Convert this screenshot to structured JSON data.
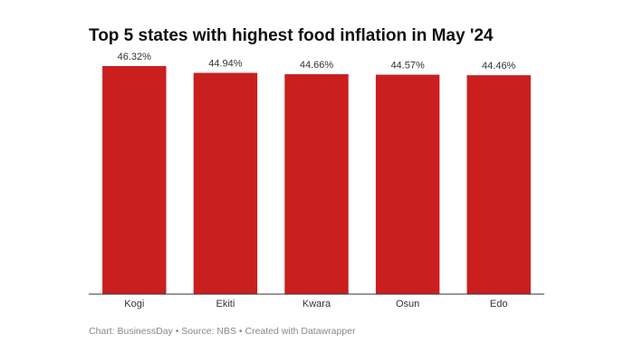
{
  "chart_data": {
    "type": "bar",
    "title": "Top 5 states with highest food inflation in May '24",
    "categories": [
      "Kogi",
      "Ekiti",
      "Kwara",
      "Osun",
      "Edo"
    ],
    "values": [
      46.32,
      44.94,
      44.66,
      44.57,
      44.46
    ],
    "value_labels": [
      "46.32%",
      "44.94%",
      "44.66%",
      "44.57%",
      "44.46%"
    ],
    "color": "#c91f1f",
    "footer": "Chart: BusinessDay • Source: NBS • Created with Datawrapper"
  }
}
